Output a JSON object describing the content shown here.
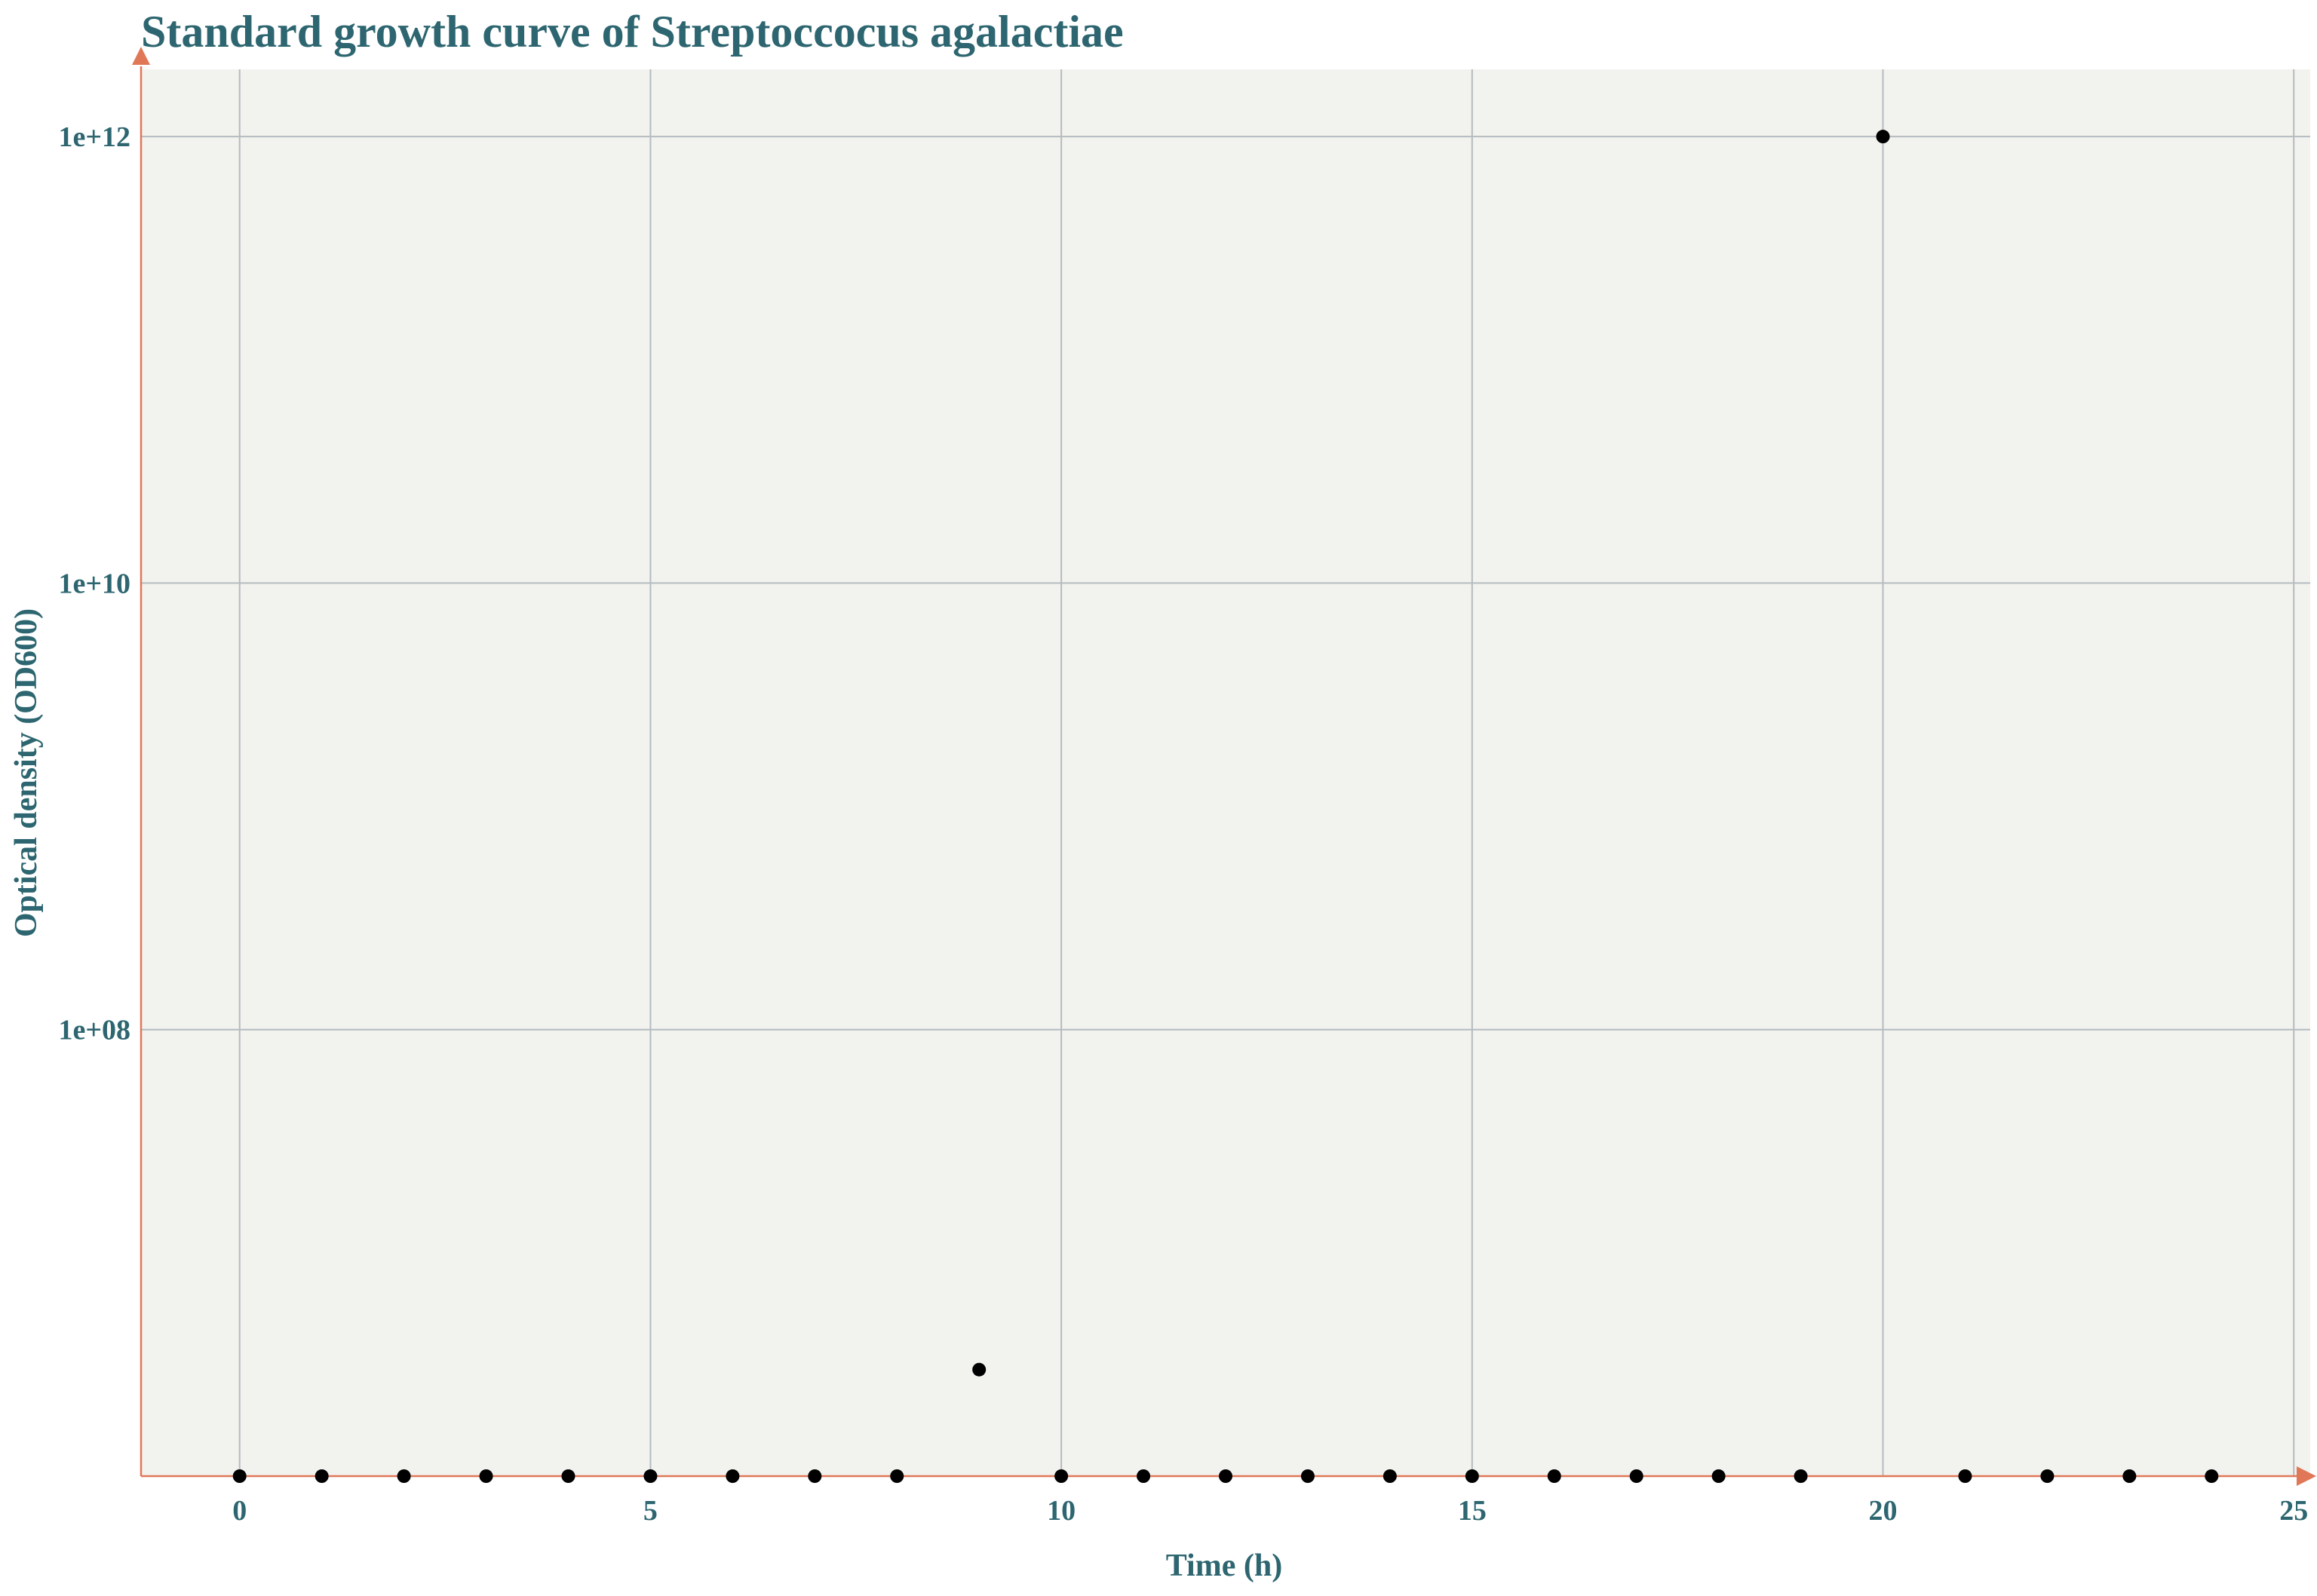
{
  "chart_data": {
    "type": "scatter",
    "title": "Standard growth curve of Streptoccocus agalactiae",
    "xlabel": "Time (h)",
    "ylabel": "Optical density (OD600)",
    "x_ticks": [
      0,
      5,
      10,
      15,
      20,
      25
    ],
    "y_ticks": [
      {
        "value": 100000000,
        "label": "1e+08"
      },
      {
        "value": 10000000000,
        "label": "1e+10"
      },
      {
        "value": 1000000000000,
        "label": "1e+12"
      }
    ],
    "xlim": [
      -1.2,
      25.2
    ],
    "ylim": [
      1000000,
      2000000000000
    ],
    "y_scale": "log",
    "grid": true,
    "series": [
      {
        "x": [
          0,
          1,
          2,
          3,
          4,
          5,
          6,
          7,
          8,
          9,
          10,
          11,
          12,
          13,
          14,
          15,
          16,
          17,
          18,
          19,
          20,
          21,
          22,
          23,
          24
        ],
        "y": [
          1000000,
          1000000,
          1000000,
          1000000,
          1000000,
          1000000,
          1000000,
          1000000,
          1000000,
          3000000,
          1000000,
          1000000,
          1000000,
          1000000,
          1000000,
          1000000,
          1000000,
          1000000,
          1000000,
          1000000,
          1000000000000,
          1000000,
          1000000,
          1000000,
          1000000
        ]
      }
    ]
  },
  "colors": {
    "plot_background": "#f2f2ee",
    "grid": "#b4bcc0",
    "axis": "#e07858",
    "text": "#2d6670",
    "point": "#000000"
  }
}
